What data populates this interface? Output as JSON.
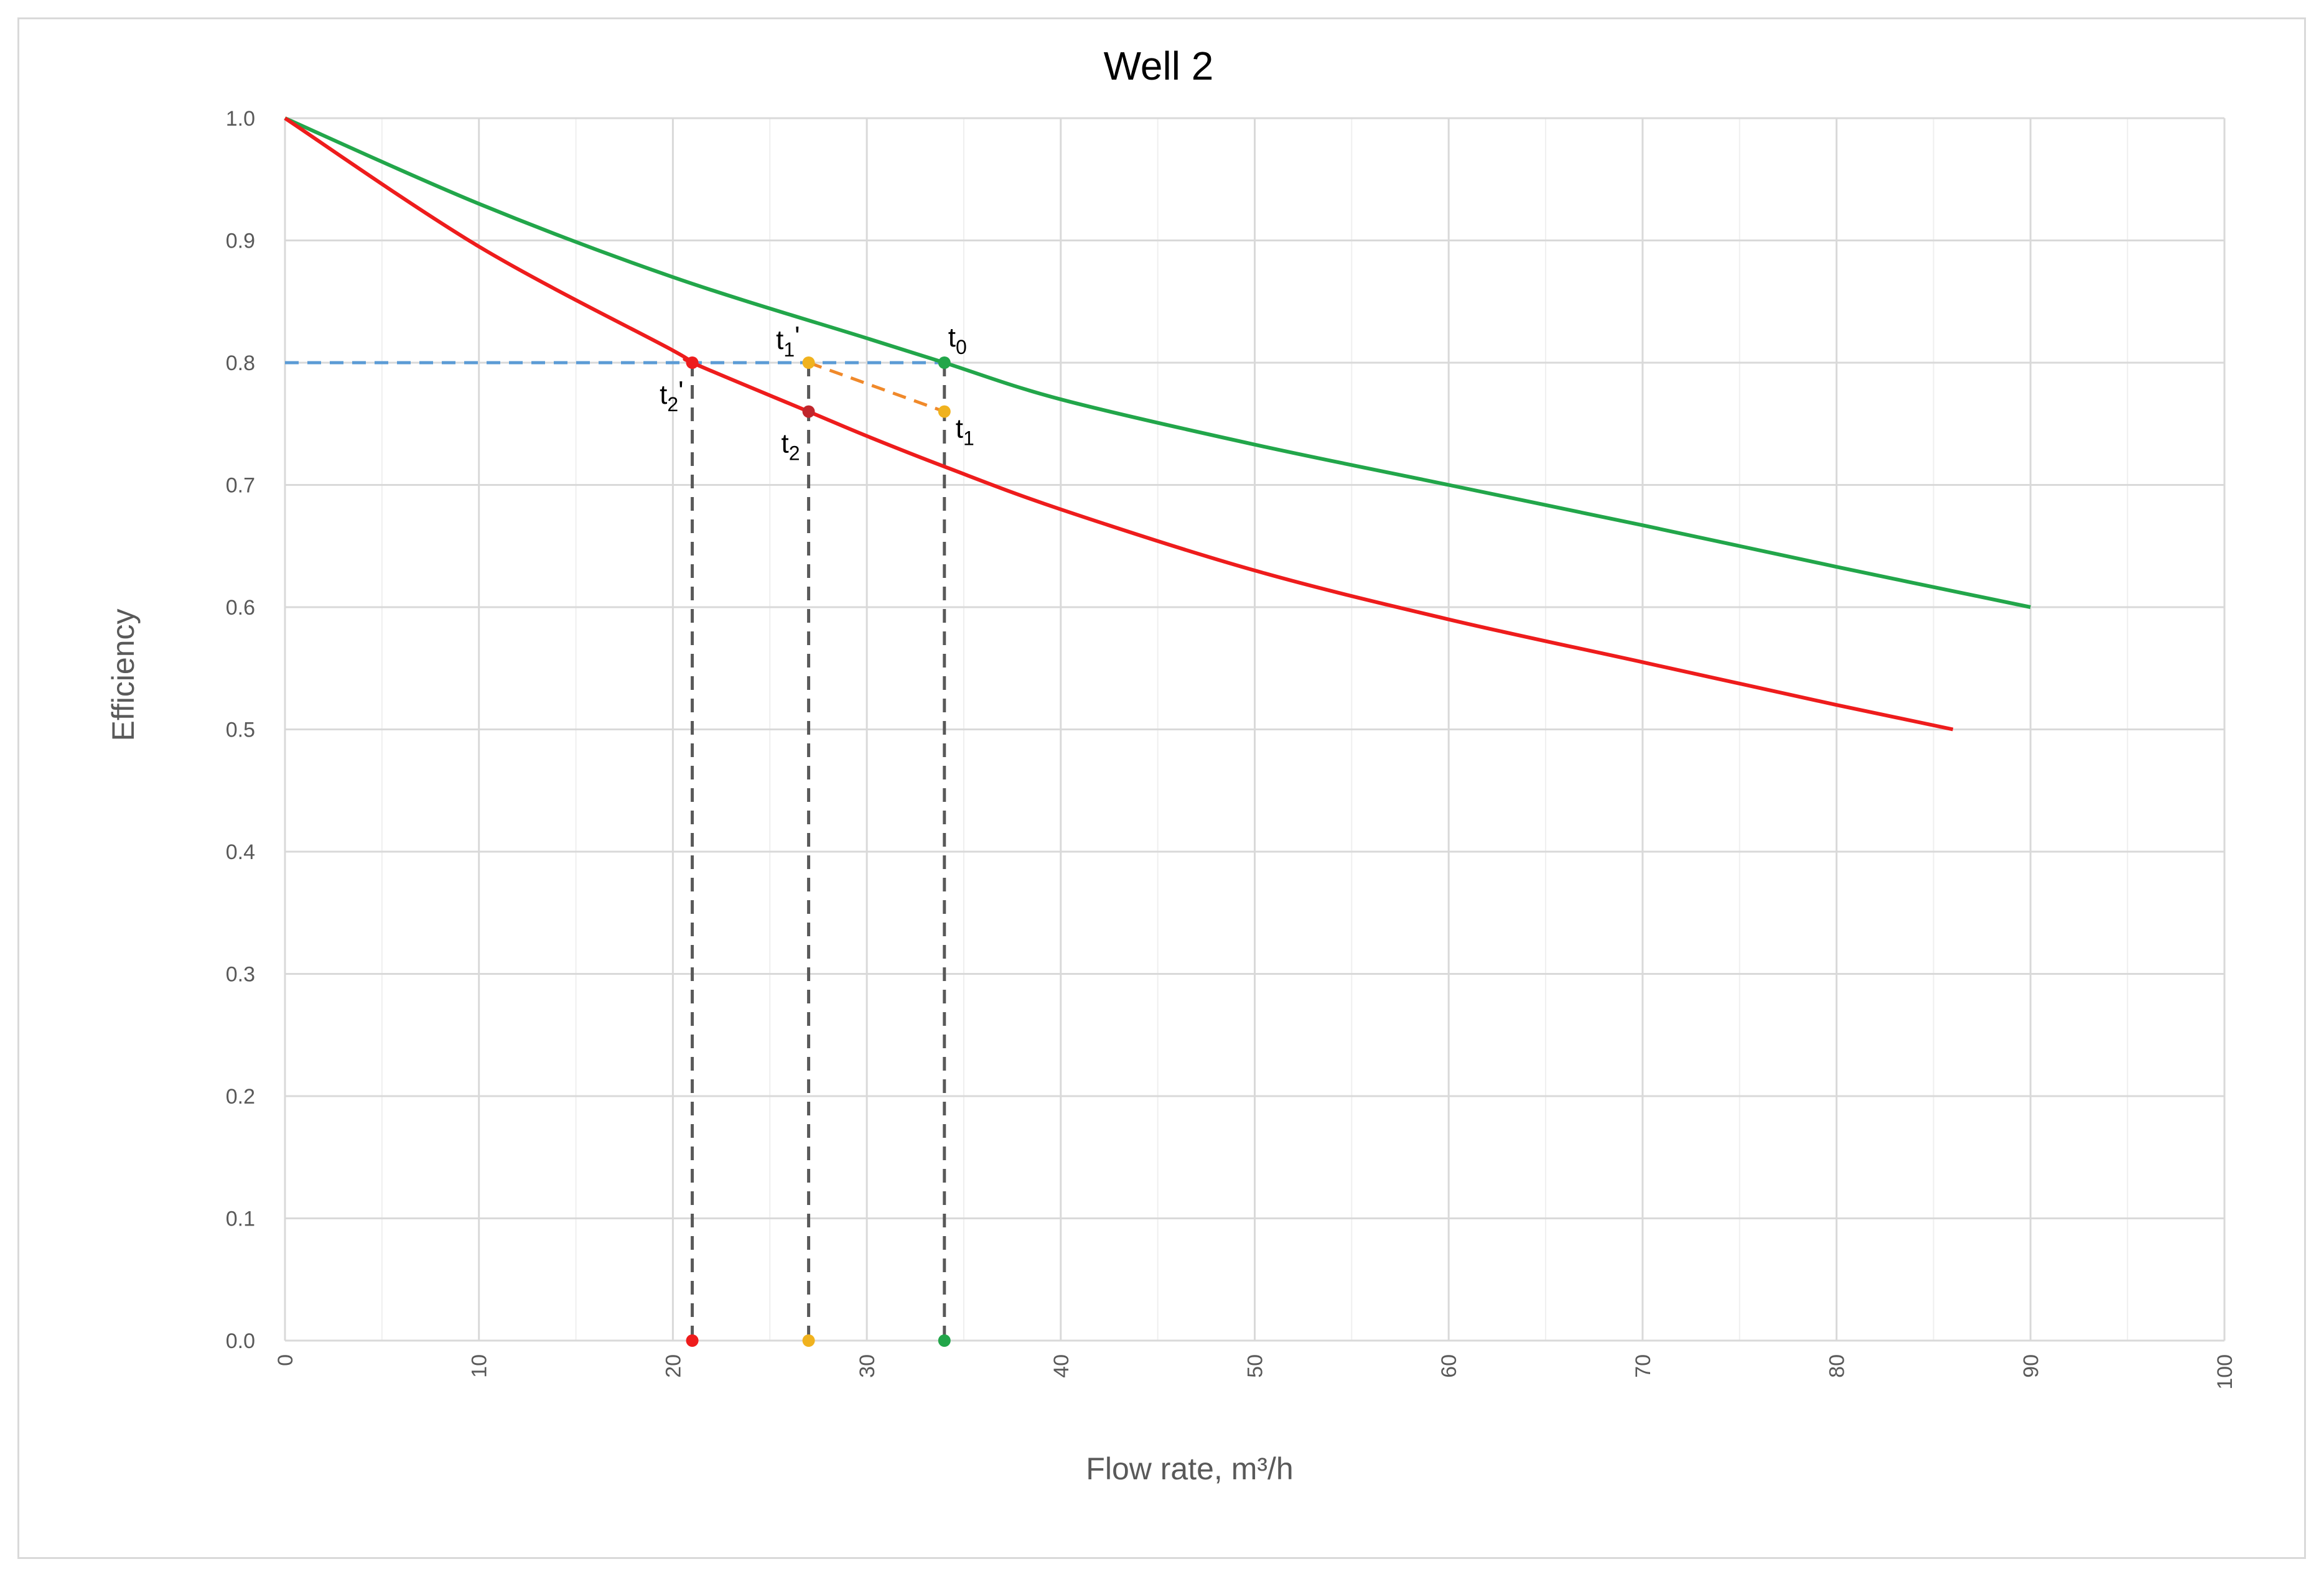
{
  "chart_data": {
    "type": "line",
    "title": "Well 2",
    "xlabel": "Flow rate, m³/h",
    "ylabel": "Efficiency",
    "xlim": [
      0,
      100
    ],
    "ylim": [
      0,
      1.0
    ],
    "x_major_ticks": [
      0,
      10,
      20,
      30,
      40,
      50,
      60,
      70,
      80,
      90,
      100
    ],
    "x_minor_step": 5,
    "y_ticks": [
      0.0,
      0.1,
      0.2,
      0.3,
      0.4,
      0.5,
      0.6,
      0.7,
      0.8,
      0.9,
      1.0
    ],
    "grid": true,
    "series": [
      {
        "color": "#22a64a",
        "x": [
          0,
          10,
          20,
          30,
          34,
          40,
          50,
          60,
          70,
          80,
          90
        ],
        "y": [
          1.0,
          0.93,
          0.87,
          0.82,
          0.8,
          0.77,
          0.733,
          0.7,
          0.667,
          0.633,
          0.6
        ]
      },
      {
        "color": "#ee1c1c",
        "x": [
          0,
          10,
          20,
          21,
          27,
          30,
          34,
          40,
          50,
          60,
          70,
          80,
          86
        ],
        "y": [
          1.0,
          0.895,
          0.81,
          0.8,
          0.76,
          0.74,
          0.715,
          0.68,
          0.63,
          0.59,
          0.555,
          0.52,
          0.5
        ]
      }
    ],
    "reference_line": {
      "color": "#5b9bd5",
      "y": 0.8,
      "x": [
        0,
        34
      ]
    },
    "drop_lines": [
      {
        "x": 21,
        "from_y": 0.8,
        "color": "#595959"
      },
      {
        "x": 27,
        "from_y": 0.8,
        "color": "#595959"
      },
      {
        "x": 34,
        "from_y": 0.8,
        "color": "#595959"
      }
    ],
    "connector": {
      "color": "#f0892a",
      "points": [
        [
          27,
          0.8
        ],
        [
          34,
          0.76
        ]
      ]
    },
    "points": [
      {
        "name": "t",
        "sub": "0",
        "prime": "",
        "x": 34,
        "y": 0.8,
        "color": "#22a64a",
        "label_pos": "above-right"
      },
      {
        "name": "t",
        "sub": "1",
        "prime": "",
        "x": 34,
        "y": 0.76,
        "color": "#f0b21e",
        "label_pos": "below-right"
      },
      {
        "name": "t",
        "sub": "1",
        "prime": "'",
        "x": 27,
        "y": 0.8,
        "color": "#f0b21e",
        "label_pos": "above-left"
      },
      {
        "name": "t",
        "sub": "2",
        "prime": "",
        "x": 27,
        "y": 0.76,
        "color": "#c0262c",
        "label_pos": "below-left"
      },
      {
        "name": "t",
        "sub": "2",
        "prime": "'",
        "x": 21,
        "y": 0.8,
        "color": "#ee1c1c",
        "label_pos": "below-left"
      },
      {
        "name": "",
        "sub": "",
        "prime": "",
        "x": 21,
        "y": 0.0,
        "color": "#ee1c1c",
        "label_pos": "none"
      },
      {
        "name": "",
        "sub": "",
        "prime": "",
        "x": 27,
        "y": 0.0,
        "color": "#f0b21e",
        "label_pos": "none"
      },
      {
        "name": "",
        "sub": "",
        "prime": "",
        "x": 34,
        "y": 0.0,
        "color": "#22a64a",
        "label_pos": "none"
      }
    ]
  }
}
